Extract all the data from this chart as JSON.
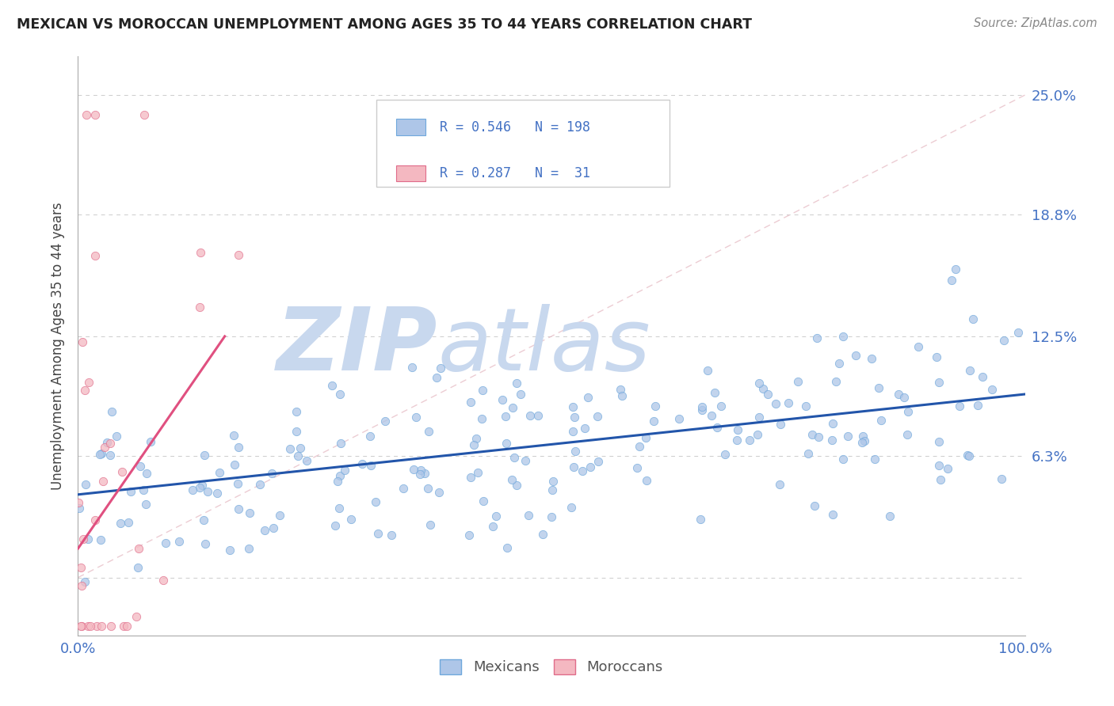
{
  "title": "MEXICAN VS MOROCCAN UNEMPLOYMENT AMONG AGES 35 TO 44 YEARS CORRELATION CHART",
  "source": "Source: ZipAtlas.com",
  "ylabel": "Unemployment Among Ages 35 to 44 years",
  "xlim": [
    0.0,
    1.0
  ],
  "ylim": [
    -0.03,
    0.27
  ],
  "yticks": [
    0.0,
    0.063,
    0.125,
    0.188,
    0.25
  ],
  "ytick_labels": [
    "",
    "6.3%",
    "12.5%",
    "18.8%",
    "25.0%"
  ],
  "mexicans_legend": "Mexicans",
  "moroccans_legend": "Moroccans",
  "scatter_color_mexican": "#aec6e8",
  "scatter_color_moroccan": "#f4b8c1",
  "scatter_edge_mexican": "#6fa8dc",
  "scatter_edge_moroccan": "#e06c8a",
  "trend_color_mexican": "#2255aa",
  "trend_color_moroccan": "#e05080",
  "background_color": "#ffffff",
  "watermark_zip": "ZIP",
  "watermark_atlas": "atlas",
  "watermark_color_zip": "#c8d8ee",
  "watermark_color_atlas": "#c8d8ee",
  "grid_color": "#cccccc",
  "title_color": "#222222",
  "axis_label_color": "#444444",
  "ytick_color": "#4472c4",
  "xtick_color": "#4472c4",
  "mexican_R": 0.546,
  "mexican_N": 198,
  "moroccan_R": 0.287,
  "moroccan_N": 31,
  "legend_box_color": "#ffffff",
  "legend_edge_color": "#cccccc"
}
